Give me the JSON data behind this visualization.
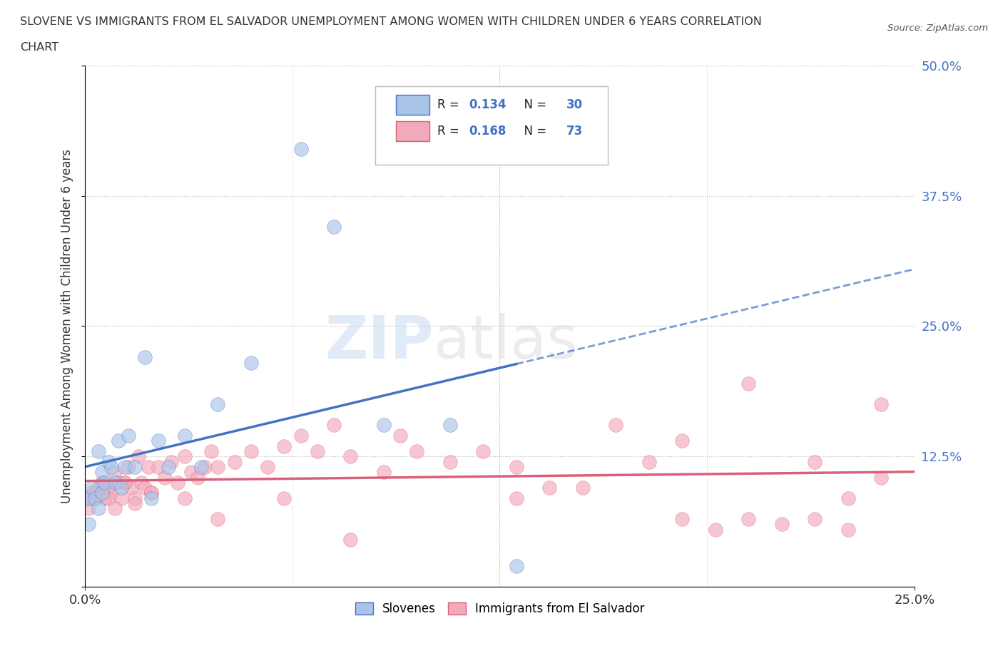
{
  "title_line1": "SLOVENE VS IMMIGRANTS FROM EL SALVADOR UNEMPLOYMENT AMONG WOMEN WITH CHILDREN UNDER 6 YEARS CORRELATION",
  "title_line2": "CHART",
  "source": "Source: ZipAtlas.com",
  "ylabel": "Unemployment Among Women with Children Under 6 years",
  "legend_label1": "Slovenes",
  "legend_label2": "Immigrants from El Salvador",
  "R1": 0.134,
  "N1": 30,
  "R2": 0.168,
  "N2": 73,
  "color1": "#aac4e8",
  "color2": "#f2aabb",
  "line_color1": "#4472c4",
  "line_color2": "#d9607a",
  "xmin": 0.0,
  "xmax": 0.25,
  "ymin": 0.0,
  "ymax": 0.5,
  "watermark_zip": "ZIP",
  "watermark_atlas": "atlas",
  "background_color": "#ffffff",
  "grid_color": "#cccccc",
  "slovene_x": [
    0.001,
    0.001,
    0.002,
    0.003,
    0.004,
    0.004,
    0.005,
    0.005,
    0.006,
    0.007,
    0.008,
    0.009,
    0.01,
    0.011,
    0.012,
    0.013,
    0.015,
    0.018,
    0.02,
    0.022,
    0.025,
    0.03,
    0.035,
    0.04,
    0.05,
    0.065,
    0.075,
    0.09,
    0.11,
    0.13
  ],
  "slovene_y": [
    0.085,
    0.06,
    0.095,
    0.085,
    0.13,
    0.075,
    0.09,
    0.11,
    0.1,
    0.12,
    0.115,
    0.1,
    0.14,
    0.095,
    0.115,
    0.145,
    0.115,
    0.22,
    0.085,
    0.14,
    0.115,
    0.145,
    0.115,
    0.175,
    0.215,
    0.42,
    0.345,
    0.155,
    0.155,
    0.02
  ],
  "salvador_x": [
    0.001,
    0.002,
    0.003,
    0.004,
    0.005,
    0.006,
    0.007,
    0.008,
    0.009,
    0.01,
    0.011,
    0.012,
    0.013,
    0.014,
    0.015,
    0.016,
    0.017,
    0.018,
    0.019,
    0.02,
    0.022,
    0.024,
    0.026,
    0.028,
    0.03,
    0.032,
    0.034,
    0.036,
    0.038,
    0.04,
    0.045,
    0.05,
    0.055,
    0.06,
    0.065,
    0.07,
    0.075,
    0.08,
    0.09,
    0.095,
    0.1,
    0.11,
    0.12,
    0.13,
    0.14,
    0.15,
    0.16,
    0.17,
    0.18,
    0.19,
    0.2,
    0.21,
    0.22,
    0.23,
    0.24,
    0.001,
    0.003,
    0.005,
    0.007,
    0.009,
    0.012,
    0.015,
    0.02,
    0.03,
    0.04,
    0.06,
    0.08,
    0.13,
    0.18,
    0.2,
    0.22,
    0.23,
    0.24
  ],
  "salvador_y": [
    0.075,
    0.09,
    0.085,
    0.095,
    0.1,
    0.085,
    0.095,
    0.09,
    0.11,
    0.1,
    0.085,
    0.1,
    0.115,
    0.095,
    0.085,
    0.125,
    0.1,
    0.095,
    0.115,
    0.09,
    0.115,
    0.105,
    0.12,
    0.1,
    0.125,
    0.11,
    0.105,
    0.115,
    0.13,
    0.115,
    0.12,
    0.13,
    0.115,
    0.135,
    0.145,
    0.13,
    0.155,
    0.125,
    0.11,
    0.145,
    0.13,
    0.12,
    0.13,
    0.115,
    0.095,
    0.095,
    0.155,
    0.12,
    0.14,
    0.055,
    0.065,
    0.06,
    0.065,
    0.055,
    0.105,
    0.085,
    0.09,
    0.1,
    0.085,
    0.075,
    0.1,
    0.08,
    0.09,
    0.085,
    0.065,
    0.085,
    0.045,
    0.085,
    0.065,
    0.195,
    0.12,
    0.085,
    0.175
  ]
}
